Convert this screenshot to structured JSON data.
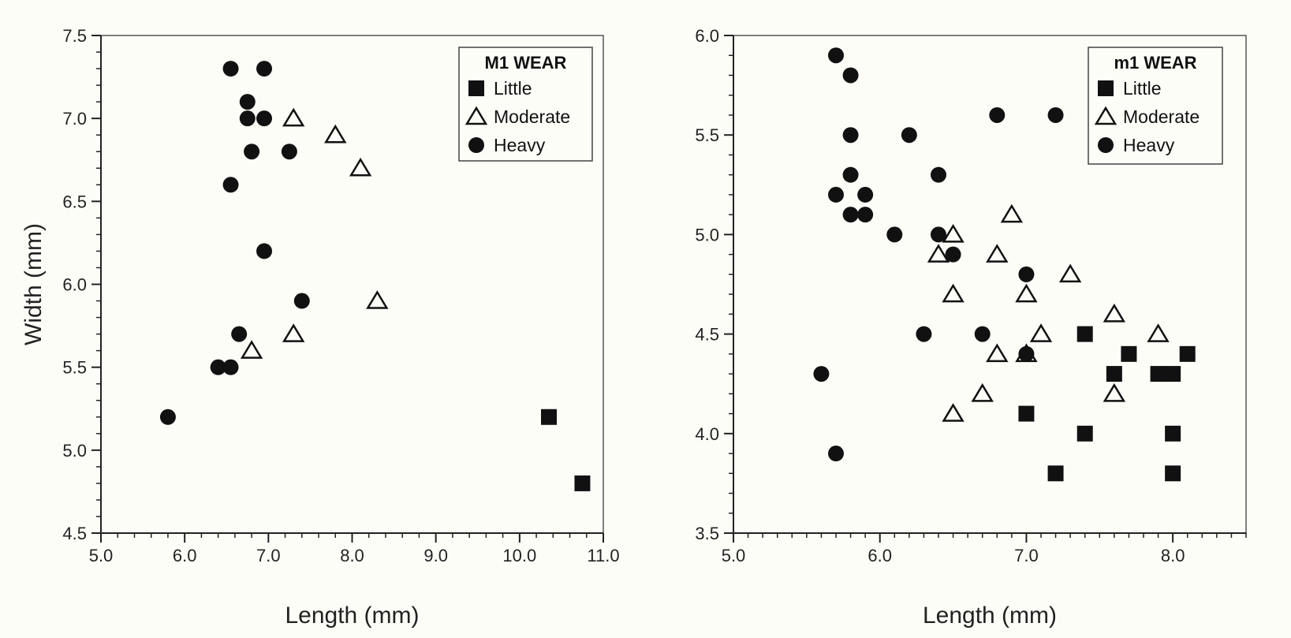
{
  "chart_data": [
    {
      "type": "scatter",
      "xlabel": "Length (mm)",
      "ylabel": "Width (mm)",
      "xlim": [
        5.0,
        11.0
      ],
      "ylim": [
        4.5,
        7.5
      ],
      "x_ticks": [
        "5.0",
        "6.0",
        "7.0",
        "8.0",
        "9.0",
        "10.0",
        "11.0"
      ],
      "y_ticks": [
        "4.5",
        "5.0",
        "5.5",
        "6.0",
        "6.5",
        "7.0",
        "7.5"
      ],
      "x_minor_step": 0.2,
      "y_minor_step": 0.1,
      "grid": false,
      "legend": {
        "title": "M1 WEAR",
        "position": "top-right",
        "entries": [
          {
            "marker": "square",
            "label": "Little"
          },
          {
            "marker": "triangle-open",
            "label": "Moderate"
          },
          {
            "marker": "circle",
            "label": "Heavy"
          }
        ]
      },
      "series": [
        {
          "name": "Little",
          "marker": "square",
          "points": [
            [
              10.35,
              5.2
            ],
            [
              10.75,
              4.8
            ]
          ]
        },
        {
          "name": "Moderate",
          "marker": "triangle-open",
          "points": [
            [
              7.3,
              7.0
            ],
            [
              7.8,
              6.9
            ],
            [
              8.1,
              6.7
            ],
            [
              8.3,
              5.9
            ],
            [
              7.3,
              5.7
            ],
            [
              6.8,
              5.6
            ]
          ]
        },
        {
          "name": "Heavy",
          "marker": "circle",
          "points": [
            [
              6.55,
              7.3
            ],
            [
              6.95,
              7.3
            ],
            [
              6.75,
              7.1
            ],
            [
              6.75,
              7.0
            ],
            [
              6.95,
              7.0
            ],
            [
              6.8,
              6.8
            ],
            [
              7.25,
              6.8
            ],
            [
              6.55,
              6.6
            ],
            [
              6.95,
              6.2
            ],
            [
              7.4,
              5.9
            ],
            [
              6.65,
              5.7
            ],
            [
              6.4,
              5.5
            ],
            [
              6.55,
              5.5
            ],
            [
              5.8,
              5.2
            ]
          ]
        }
      ]
    },
    {
      "type": "scatter",
      "xlabel": "Length (mm)",
      "ylabel": "",
      "xlim": [
        5.0,
        8.5
      ],
      "ylim": [
        3.5,
        6.0
      ],
      "x_ticks": [
        "5.0",
        "6.0",
        "7.0",
        "8.0"
      ],
      "y_ticks": [
        "3.5",
        "4.0",
        "4.5",
        "5.0",
        "5.5",
        "6.0"
      ],
      "x_minor_step": 0.1,
      "y_minor_step": 0.1,
      "grid": false,
      "legend": {
        "title": "m1 WEAR",
        "position": "top-right",
        "entries": [
          {
            "marker": "square",
            "label": "Little"
          },
          {
            "marker": "triangle-open",
            "label": "Moderate"
          },
          {
            "marker": "circle",
            "label": "Heavy"
          }
        ]
      },
      "series": [
        {
          "name": "Little",
          "marker": "square",
          "points": [
            [
              7.4,
              4.5
            ],
            [
              7.6,
              4.3
            ],
            [
              7.7,
              4.4
            ],
            [
              7.9,
              4.3
            ],
            [
              8.0,
              4.3
            ],
            [
              8.1,
              4.4
            ],
            [
              7.0,
              4.1
            ],
            [
              7.4,
              4.0
            ],
            [
              8.0,
              4.0
            ],
            [
              7.2,
              3.8
            ],
            [
              8.0,
              3.8
            ]
          ]
        },
        {
          "name": "Moderate",
          "marker": "triangle-open",
          "points": [
            [
              6.9,
              5.1
            ],
            [
              6.4,
              4.9
            ],
            [
              6.5,
              5.0
            ],
            [
              6.8,
              4.9
            ],
            [
              7.3,
              4.8
            ],
            [
              6.5,
              4.7
            ],
            [
              7.0,
              4.7
            ],
            [
              7.6,
              4.6
            ],
            [
              7.1,
              4.5
            ],
            [
              7.9,
              4.5
            ],
            [
              6.8,
              4.4
            ],
            [
              7.0,
              4.4
            ],
            [
              6.7,
              4.2
            ],
            [
              7.6,
              4.2
            ],
            [
              6.5,
              4.1
            ]
          ]
        },
        {
          "name": "Heavy",
          "marker": "circle",
          "points": [
            [
              5.7,
              5.9
            ],
            [
              5.8,
              5.8
            ],
            [
              6.8,
              5.6
            ],
            [
              7.2,
              5.6
            ],
            [
              5.8,
              5.5
            ],
            [
              6.2,
              5.5
            ],
            [
              5.8,
              5.3
            ],
            [
              6.4,
              5.3
            ],
            [
              5.7,
              5.2
            ],
            [
              5.9,
              5.2
            ],
            [
              5.8,
              5.1
            ],
            [
              5.9,
              5.1
            ],
            [
              6.1,
              5.0
            ],
            [
              6.4,
              5.0
            ],
            [
              6.5,
              4.9
            ],
            [
              7.0,
              4.8
            ],
            [
              6.3,
              4.5
            ],
            [
              6.7,
              4.5
            ],
            [
              7.0,
              4.4
            ],
            [
              5.6,
              4.3
            ],
            [
              5.7,
              3.9
            ]
          ]
        }
      ]
    }
  ]
}
